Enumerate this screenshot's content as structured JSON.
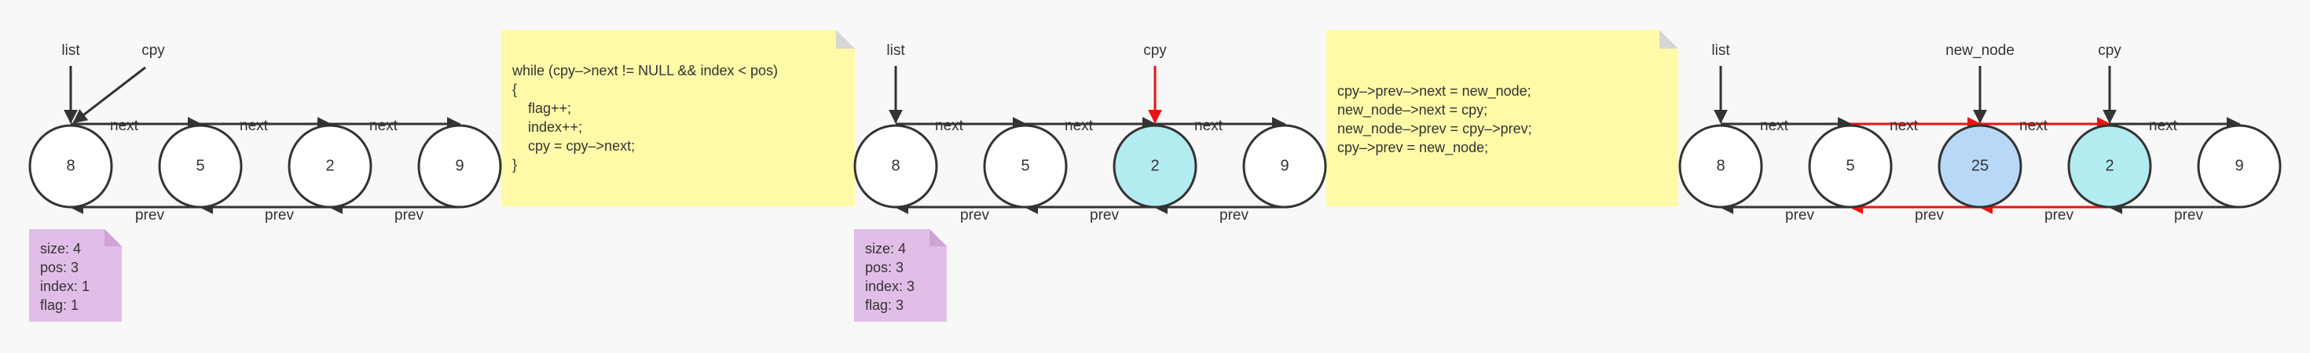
{
  "colors": {
    "line": "#333333",
    "highlight": "#ee1111",
    "node_fill": "#ffffff",
    "node_cpy": "#b2ebf0",
    "node_new": "#b8d8f8",
    "code_note": "#fffaa8",
    "code_fold": "#d6d6d6",
    "state_note": "#e1bee7",
    "state_fold": "#cfa3d6"
  },
  "labels": {
    "next": "next",
    "prev": "prev"
  },
  "panels": [
    {
      "nodes": [
        {
          "value": "8",
          "style": "plain"
        },
        {
          "value": "5",
          "style": "plain"
        },
        {
          "value": "2",
          "style": "plain"
        },
        {
          "value": "9",
          "style": "plain"
        }
      ],
      "pointers": [
        {
          "text": "list",
          "target": 0,
          "color": "line"
        },
        {
          "text": "cpy",
          "target": 0,
          "color": "line",
          "diagonal": true
        }
      ],
      "state": [
        "size: 4",
        "pos: 3",
        "index: 1",
        "flag: 1"
      ]
    },
    {
      "nodes": [
        {
          "value": "8",
          "style": "plain"
        },
        {
          "value": "5",
          "style": "plain"
        },
        {
          "value": "2",
          "style": "cpy"
        },
        {
          "value": "9",
          "style": "plain"
        }
      ],
      "pointers": [
        {
          "text": "list",
          "target": 0,
          "color": "line"
        },
        {
          "text": "cpy",
          "target": 2,
          "color": "highlight"
        }
      ],
      "state": [
        "size: 4",
        "pos: 3",
        "index: 3",
        "flag: 3"
      ]
    },
    {
      "nodes": [
        {
          "value": "8",
          "style": "plain"
        },
        {
          "value": "5",
          "style": "plain"
        },
        {
          "value": "25",
          "style": "new"
        },
        {
          "value": "2",
          "style": "cpy"
        },
        {
          "value": "9",
          "style": "plain"
        }
      ],
      "pointers": [
        {
          "text": "list",
          "target": 0,
          "color": "line"
        },
        {
          "text": "new_node",
          "target": 2,
          "color": "line"
        },
        {
          "text": "cpy",
          "target": 3,
          "color": "line"
        }
      ],
      "red_links": [
        1,
        2
      ]
    }
  ],
  "code_notes": [
    [
      "while (cpy–>next != NULL && index < pos)",
      "{",
      "    flag++;",
      "    index++;",
      "    cpy = cpy–>next;",
      "}"
    ],
    [
      "cpy–>prev–>next = new_node;",
      "new_node–>next = cpy;",
      "new_node–>prev = cpy–>prev;",
      "cpy–>prev = new_node;"
    ]
  ]
}
